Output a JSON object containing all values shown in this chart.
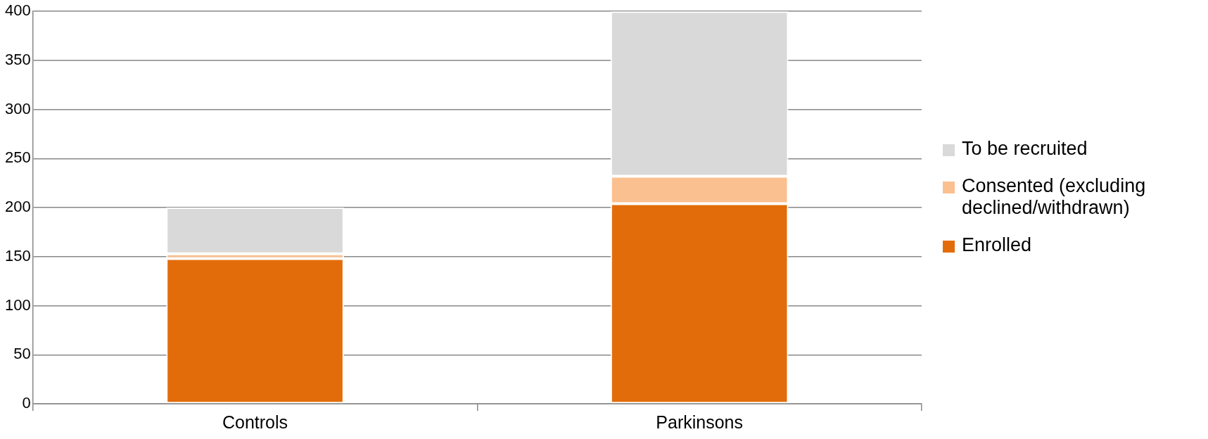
{
  "chart_data": {
    "type": "bar",
    "stacked": true,
    "categories": [
      "Controls",
      "Parkinsons"
    ],
    "series": [
      {
        "name": "Enrolled",
        "color": "#e36c0a",
        "values": [
          148,
          204
        ]
      },
      {
        "name": "Consented (excluding declined/withdrawn)",
        "color": "#fac090",
        "values": [
          5,
          28
        ]
      },
      {
        "name": "To be recruited",
        "color": "#d9d9d9",
        "values": [
          47,
          168
        ]
      }
    ],
    "ylim": [
      0,
      400
    ],
    "yticks": [
      0,
      50,
      100,
      150,
      200,
      250,
      300,
      350,
      400
    ],
    "grid": "y",
    "legend": "right"
  }
}
